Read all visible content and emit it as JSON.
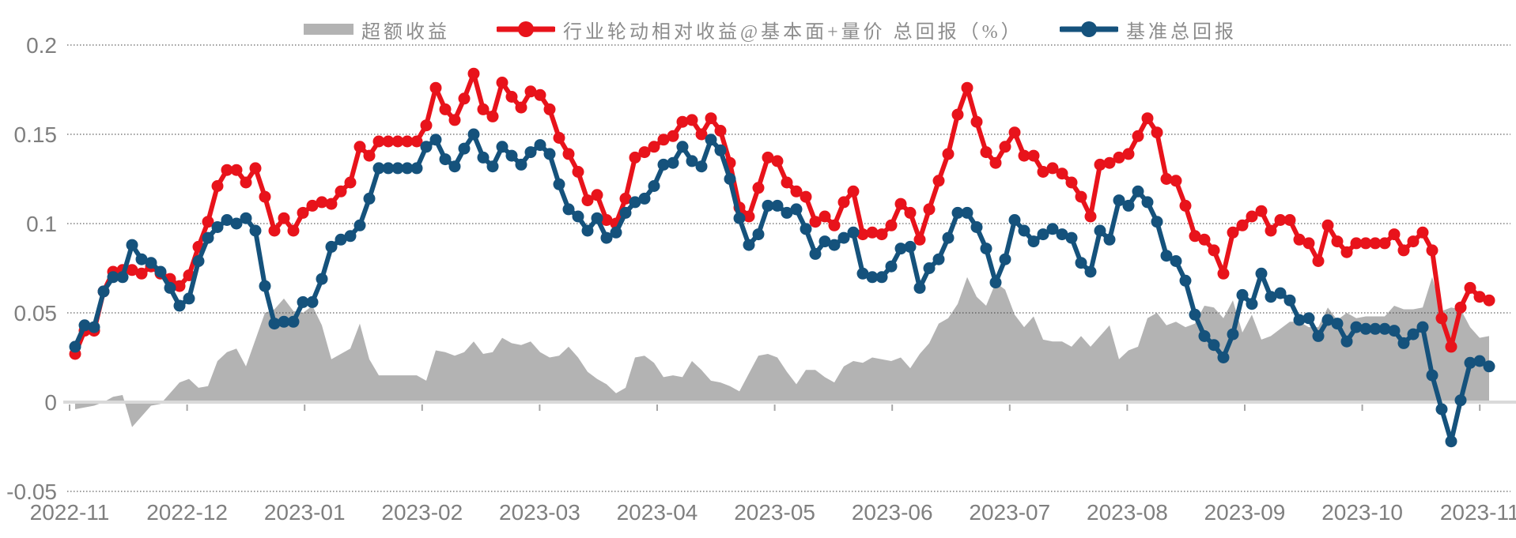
{
  "chart_data": {
    "type": "line",
    "title": "",
    "legend_position": "top-center",
    "grid": "horizontal-dotted",
    "background": "#ffffff",
    "colors": {
      "area": "#b3b3b3",
      "red_line": "#e8131b",
      "blue_line": "#15527c",
      "axis_text": "#7f7f7f",
      "grid_line": "#3c3c3c",
      "zero_axis": "#d9d9d9",
      "tick_mark": "#a6a6a6",
      "legend_text": "#8c8c8c"
    },
    "x_tick_labels": [
      "2022-11",
      "2022-12",
      "2023-01",
      "2023-02",
      "2023-03",
      "2023-04",
      "2023-05",
      "2023-06",
      "2023-07",
      "2023-08",
      "2023-09",
      "2023-10",
      "2023-11"
    ],
    "y_tick_labels": [
      "0.2",
      "0.15",
      "0.1",
      "0.05",
      "0",
      "-0.05"
    ],
    "y_ticks": [
      0.2,
      0.15,
      0.1,
      0.05,
      0,
      -0.05
    ],
    "ylim": [
      -0.05,
      0.2
    ],
    "n_points": 150,
    "series": [
      {
        "name": "超额收益",
        "type": "area",
        "color": "#b3b3b3",
        "values": [
          -0.004,
          -0.003,
          -0.002,
          0.0,
          0.003,
          0.004,
          -0.014,
          -0.008,
          -0.002,
          -0.001,
          0.005,
          0.011,
          0.013,
          0.008,
          0.009,
          0.023,
          0.028,
          0.03,
          0.02,
          0.035,
          0.05,
          0.052,
          0.058,
          0.051,
          0.05,
          0.054,
          0.043,
          0.024,
          0.027,
          0.03,
          0.044,
          0.024,
          0.015,
          0.015,
          0.015,
          0.015,
          0.015,
          0.012,
          0.029,
          0.028,
          0.026,
          0.028,
          0.034,
          0.027,
          0.028,
          0.036,
          0.033,
          0.032,
          0.034,
          0.028,
          0.025,
          0.026,
          0.031,
          0.025,
          0.017,
          0.013,
          0.01,
          0.005,
          0.008,
          0.025,
          0.026,
          0.022,
          0.014,
          0.015,
          0.014,
          0.023,
          0.018,
          0.012,
          0.011,
          0.009,
          0.006,
          0.016,
          0.026,
          0.027,
          0.025,
          0.017,
          0.01,
          0.018,
          0.018,
          0.014,
          0.011,
          0.02,
          0.023,
          0.022,
          0.025,
          0.024,
          0.023,
          0.025,
          0.019,
          0.027,
          0.033,
          0.044,
          0.047,
          0.055,
          0.07,
          0.059,
          0.054,
          0.067,
          0.063,
          0.049,
          0.042,
          0.048,
          0.035,
          0.034,
          0.034,
          0.031,
          0.037,
          0.031,
          0.037,
          0.043,
          0.024,
          0.029,
          0.031,
          0.047,
          0.05,
          0.043,
          0.045,
          0.042,
          0.044,
          0.054,
          0.053,
          0.047,
          0.057,
          0.039,
          0.049,
          0.035,
          0.037,
          0.041,
          0.045,
          0.045,
          0.042,
          0.042,
          0.053,
          0.046,
          0.05,
          0.047,
          0.048,
          0.048,
          0.048,
          0.054,
          0.052,
          0.052,
          0.053,
          0.07,
          0.051,
          0.053,
          0.052,
          0.042,
          0.036,
          0.037
        ]
      },
      {
        "name": "行业轮动相对收益@基本面+量价 总回报（%）",
        "type": "line-marker",
        "color": "#e8131b",
        "values": [
          0.027,
          0.04,
          0.04,
          0.062,
          0.073,
          0.074,
          0.074,
          0.072,
          0.076,
          0.072,
          0.069,
          0.065,
          0.071,
          0.087,
          0.101,
          0.121,
          0.13,
          0.13,
          0.123,
          0.131,
          0.115,
          0.096,
          0.103,
          0.096,
          0.106,
          0.11,
          0.112,
          0.111,
          0.118,
          0.123,
          0.143,
          0.138,
          0.146,
          0.146,
          0.146,
          0.146,
          0.146,
          0.155,
          0.176,
          0.164,
          0.158,
          0.17,
          0.184,
          0.164,
          0.16,
          0.179,
          0.171,
          0.165,
          0.174,
          0.172,
          0.164,
          0.148,
          0.139,
          0.129,
          0.113,
          0.116,
          0.102,
          0.1,
          0.114,
          0.137,
          0.14,
          0.143,
          0.147,
          0.149,
          0.157,
          0.158,
          0.15,
          0.159,
          0.152,
          0.134,
          0.109,
          0.104,
          0.12,
          0.137,
          0.135,
          0.123,
          0.118,
          0.115,
          0.101,
          0.104,
          0.099,
          0.112,
          0.118,
          0.094,
          0.095,
          0.094,
          0.099,
          0.111,
          0.106,
          0.091,
          0.108,
          0.124,
          0.139,
          0.161,
          0.176,
          0.157,
          0.14,
          0.134,
          0.143,
          0.151,
          0.138,
          0.138,
          0.129,
          0.131,
          0.128,
          0.123,
          0.115,
          0.104,
          0.133,
          0.134,
          0.137,
          0.139,
          0.149,
          0.159,
          0.151,
          0.125,
          0.124,
          0.11,
          0.093,
          0.091,
          0.085,
          0.072,
          0.095,
          0.099,
          0.104,
          0.107,
          0.096,
          0.102,
          0.102,
          0.091,
          0.089,
          0.079,
          0.099,
          0.09,
          0.084,
          0.089,
          0.089,
          0.089,
          0.089,
          0.094,
          0.085,
          0.09,
          0.095,
          0.085,
          0.047,
          0.031,
          0.053,
          0.064,
          0.059,
          0.057
        ]
      },
      {
        "name": "基准总回报",
        "type": "line-marker",
        "color": "#15527c",
        "values": [
          0.031,
          0.043,
          0.042,
          0.062,
          0.07,
          0.07,
          0.088,
          0.08,
          0.078,
          0.073,
          0.064,
          0.054,
          0.058,
          0.079,
          0.092,
          0.098,
          0.102,
          0.1,
          0.103,
          0.096,
          0.065,
          0.044,
          0.045,
          0.045,
          0.056,
          0.056,
          0.069,
          0.087,
          0.091,
          0.093,
          0.099,
          0.114,
          0.131,
          0.131,
          0.131,
          0.131,
          0.131,
          0.143,
          0.147,
          0.136,
          0.132,
          0.142,
          0.15,
          0.137,
          0.132,
          0.143,
          0.138,
          0.133,
          0.14,
          0.144,
          0.139,
          0.122,
          0.108,
          0.104,
          0.096,
          0.103,
          0.092,
          0.095,
          0.106,
          0.112,
          0.114,
          0.121,
          0.133,
          0.134,
          0.143,
          0.135,
          0.132,
          0.147,
          0.141,
          0.125,
          0.103,
          0.088,
          0.094,
          0.11,
          0.11,
          0.106,
          0.108,
          0.097,
          0.083,
          0.09,
          0.088,
          0.092,
          0.095,
          0.072,
          0.07,
          0.07,
          0.076,
          0.086,
          0.087,
          0.064,
          0.075,
          0.08,
          0.092,
          0.106,
          0.106,
          0.098,
          0.086,
          0.067,
          0.08,
          0.102,
          0.096,
          0.09,
          0.094,
          0.097,
          0.094,
          0.092,
          0.078,
          0.073,
          0.096,
          0.091,
          0.113,
          0.11,
          0.118,
          0.112,
          0.101,
          0.082,
          0.079,
          0.068,
          0.049,
          0.037,
          0.032,
          0.025,
          0.038,
          0.06,
          0.055,
          0.072,
          0.059,
          0.061,
          0.057,
          0.046,
          0.047,
          0.037,
          0.046,
          0.044,
          0.034,
          0.042,
          0.041,
          0.041,
          0.041,
          0.04,
          0.033,
          0.038,
          0.042,
          0.015,
          -0.004,
          -0.022,
          0.001,
          0.022,
          0.023,
          0.02
        ]
      }
    ]
  }
}
